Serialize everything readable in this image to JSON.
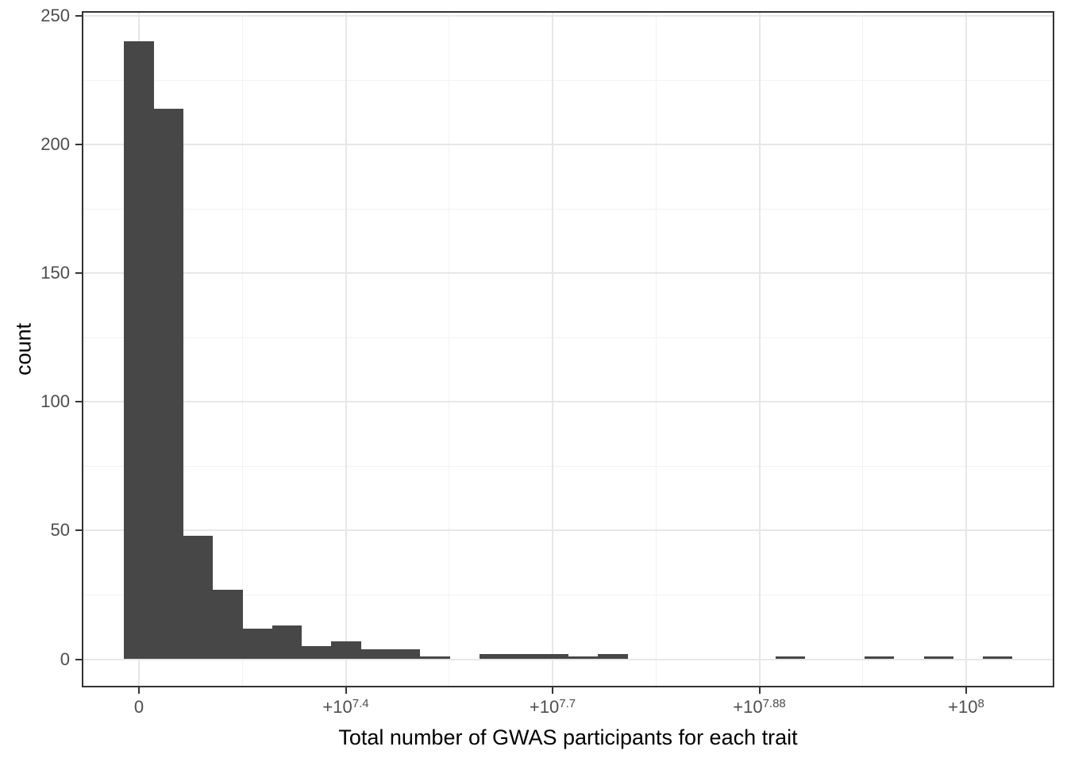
{
  "chart_data": {
    "type": "histogram",
    "title": "",
    "xlabel": "Total number of GWAS participants for each trait",
    "ylabel": "count",
    "legend": false,
    "grid": true,
    "n_bins": 30,
    "bin_width_participants": 3580000,
    "first_bin_center_participants": 0,
    "bin_counts": [
      240,
      214,
      48,
      27,
      12,
      13,
      5,
      7,
      4,
      4,
      1,
      0,
      2,
      2,
      2,
      1,
      2,
      0,
      0,
      0,
      0,
      0,
      1,
      0,
      0,
      1,
      0,
      1,
      0,
      1
    ],
    "x_ticks": [
      {
        "value_participants": 0,
        "label": "0",
        "base": "0",
        "exp": ""
      },
      {
        "value_participants": 25000000,
        "label": "+10^7.4",
        "base": "+10",
        "exp": "7.4"
      },
      {
        "value_participants": 50000000,
        "label": "+10^7.7",
        "base": "+10",
        "exp": "7.7"
      },
      {
        "value_participants": 75000000,
        "label": "+10^7.88",
        "base": "+10",
        "exp": "7.88"
      },
      {
        "value_participants": 100000000,
        "label": "+10^8",
        "base": "+10",
        "exp": "8"
      }
    ],
    "x_minor_ticks_participants": [
      12500000,
      37500000,
      62500000,
      87500000
    ],
    "y_ticks": [
      0,
      50,
      100,
      150,
      200,
      250
    ],
    "y_minor_ticks": [
      25,
      75,
      125,
      175,
      225
    ],
    "xlim_participants": [
      -6910000,
      110650000
    ],
    "ylim": [
      -10.95,
      251.85
    ]
  },
  "theme": {
    "bar_color": "#474747",
    "panel_border_color": "#333333",
    "major_grid_color": "#E7E7E7",
    "minor_grid_color": "#F2F2F2",
    "tick_color": "#333333",
    "tick_label_color": "#4D4D4D",
    "axis_title_color": "#000000",
    "background": "#FFFFFF"
  }
}
